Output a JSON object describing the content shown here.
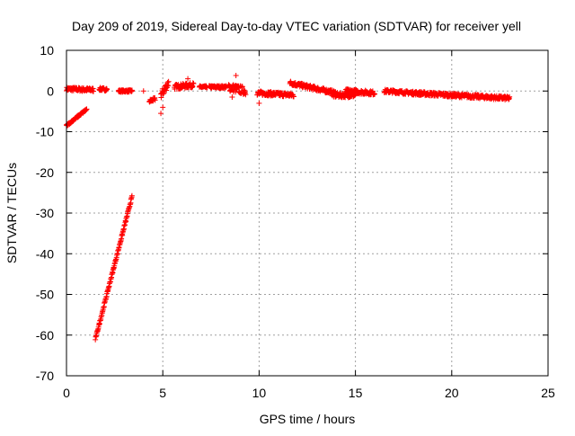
{
  "chart_data": {
    "type": "scatter",
    "title": "Day 209 of 2019, Sidereal Day-to-day VTEC variation (SDTVAR) for receiver yell",
    "xlabel": "GPS time / hours",
    "ylabel": "SDTVAR / TECUs",
    "xlim": [
      0,
      25
    ],
    "ylim": [
      -70,
      10
    ],
    "x_ticks": [
      0,
      5,
      10,
      15,
      20,
      25
    ],
    "y_ticks": [
      10,
      0,
      -10,
      -20,
      -30,
      -40,
      -50,
      -60,
      -70
    ],
    "grid": true,
    "marker": "+",
    "series_color": "#ff0000",
    "segments": [
      {
        "name": "main-band-1",
        "x_start": 0.0,
        "x_end": 1.4,
        "y_start": 0.5,
        "y_end": 0.3,
        "spread": 0.9
      },
      {
        "name": "main-band-2",
        "x_start": 1.7,
        "x_end": 2.1,
        "y_start": 0.5,
        "y_end": 0.4,
        "spread": 0.7
      },
      {
        "name": "main-band-3",
        "x_start": 2.7,
        "x_end": 3.4,
        "y_start": 0.0,
        "y_end": 0.0,
        "spread": 0.5
      },
      {
        "name": "main-band-4",
        "x_start": 4.3,
        "x_end": 4.6,
        "y_start": -2.5,
        "y_end": -2.0,
        "spread": 0.8
      },
      {
        "name": "main-band-5",
        "x_start": 4.9,
        "x_end": 5.3,
        "y_start": -1.0,
        "y_end": 2.0,
        "spread": 2.0
      },
      {
        "name": "main-band-6",
        "x_start": 5.6,
        "x_end": 6.6,
        "y_start": 1.0,
        "y_end": 1.5,
        "spread": 1.2
      },
      {
        "name": "main-band-7",
        "x_start": 6.9,
        "x_end": 7.3,
        "y_start": 1.0,
        "y_end": 1.0,
        "spread": 0.5
      },
      {
        "name": "main-band-8",
        "x_start": 7.4,
        "x_end": 8.3,
        "y_start": 1.0,
        "y_end": 1.0,
        "spread": 0.6
      },
      {
        "name": "main-band-9",
        "x_start": 8.4,
        "x_end": 9.3,
        "y_start": 1.0,
        "y_end": 0.0,
        "spread": 2.0
      },
      {
        "name": "main-band-10",
        "x_start": 9.9,
        "x_end": 11.8,
        "y_start": -0.5,
        "y_end": -1.0,
        "spread": 1.0
      },
      {
        "name": "main-band-11",
        "x_start": 11.6,
        "x_end": 14.0,
        "y_start": 2.0,
        "y_end": -0.5,
        "spread": 1.0
      },
      {
        "name": "main-band-12",
        "x_start": 13.8,
        "x_end": 15.0,
        "y_start": -1.0,
        "y_end": -1.0,
        "spread": 1.2
      },
      {
        "name": "main-band-13",
        "x_start": 14.5,
        "x_end": 16.0,
        "y_start": 0.0,
        "y_end": -0.5,
        "spread": 1.0
      },
      {
        "name": "main-band-14",
        "x_start": 16.5,
        "x_end": 18.0,
        "y_start": 0.0,
        "y_end": -0.5,
        "spread": 0.8
      },
      {
        "name": "main-band-15",
        "x_start": 18.0,
        "x_end": 23.0,
        "y_start": -0.5,
        "y_end": -1.8,
        "spread": 0.9
      },
      {
        "name": "offset-arc",
        "x_start": 0.0,
        "x_end": 1.05,
        "y_start": -8.5,
        "y_end": -4.5,
        "spread": 0.5
      },
      {
        "name": "steep-ramp",
        "x_start": 1.5,
        "x_end": 3.4,
        "y_start": -61.0,
        "y_end": -26.0,
        "spread": 0.6
      }
    ],
    "points": [
      {
        "x": 4.9,
        "y": -5.5
      },
      {
        "x": 5.0,
        "y": -4.0
      },
      {
        "x": 3.4,
        "y": 0.0
      },
      {
        "x": 4.0,
        "y": 0.0
      },
      {
        "x": 8.8,
        "y": 3.8
      },
      {
        "x": 8.6,
        "y": -1.5
      },
      {
        "x": 10.0,
        "y": -3.0
      },
      {
        "x": 6.3,
        "y": 3.0
      }
    ]
  }
}
